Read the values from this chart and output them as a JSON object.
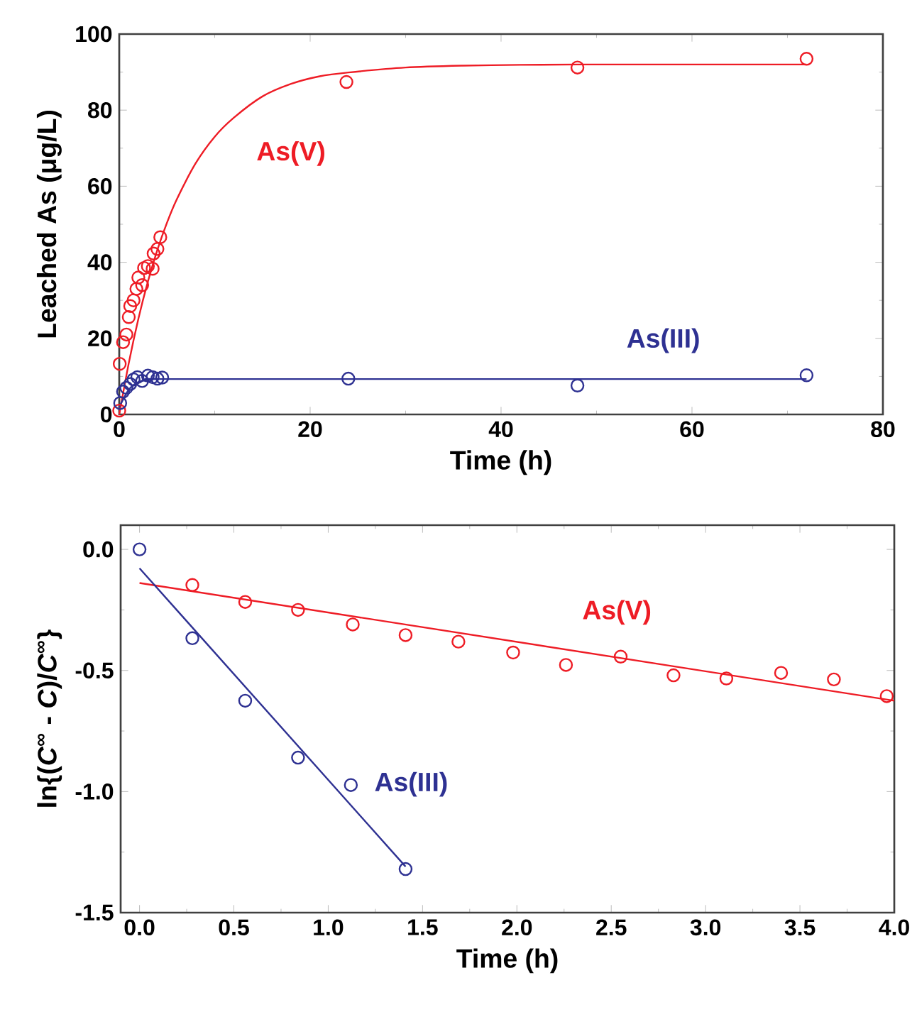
{
  "chart_data": [
    {
      "type": "scatter",
      "xlabel": "Time  (h)",
      "ylabel": "Leached As (μg/L)",
      "xlim": [
        0,
        80
      ],
      "ylim": [
        0,
        100
      ],
      "xticks": [
        0,
        20,
        40,
        60,
        80
      ],
      "yticks": [
        0,
        20,
        40,
        60,
        80,
        100
      ],
      "series": [
        {
          "name": "As(V)",
          "color": "#ee1c25",
          "marker": "circle",
          "x": [
            0,
            0.05,
            0.4,
            0.75,
            1,
            1.15,
            1.5,
            1.8,
            2,
            2.4,
            2.6,
            3,
            3.5,
            3.6,
            4,
            4.3,
            23.8,
            48,
            72
          ],
          "values": [
            1,
            13.3,
            19,
            21,
            25.6,
            28.5,
            30,
            33,
            36,
            34,
            38.5,
            39,
            38.3,
            42.3,
            43.5,
            46.6,
            87.4,
            91.2,
            93.5
          ]
        },
        {
          "name": "As(III)",
          "color": "#2e3192",
          "marker": "circle",
          "x": [
            0.1,
            0.4,
            0.75,
            1.15,
            1.5,
            1.9,
            2.4,
            3,
            3.5,
            4,
            4.5,
            24,
            48,
            72
          ],
          "values": [
            3,
            6,
            7,
            8,
            9.2,
            9.8,
            8.8,
            10.2,
            9.8,
            9.4,
            9.7,
            9.4,
            7.6,
            10.3
          ]
        },
        {
          "type": "line",
          "color": "#ee1c25",
          "marker": "none",
          "x": [
            0,
            1,
            2,
            3,
            4,
            5,
            6,
            8,
            10,
            12,
            15,
            18,
            21,
            24,
            30,
            36,
            42,
            48,
            60,
            72
          ],
          "values": [
            0,
            13.5,
            25.1,
            34.9,
            43.3,
            50.4,
            56.4,
            66,
            73,
            78,
            83.6,
            86.9,
            88.9,
            89.9,
            91.2,
            91.7,
            91.9,
            92,
            92,
            92
          ]
        },
        {
          "type": "line",
          "color": "#2e3192",
          "marker": "none",
          "x": [
            0,
            1,
            2,
            3,
            4,
            8,
            72
          ],
          "values": [
            2,
            6.5,
            8.5,
            9.1,
            9.3,
            9.3,
            9.3
          ]
        }
      ]
    },
    {
      "type": "scatter",
      "xlabel": "Time  (h)",
      "ylabel": "ln{(*C*$^{∞}$ - *C*)/*C*$^{∞}$}",
      "xlim": [
        -0.1,
        4.0
      ],
      "ylim": [
        -1.5,
        0.1
      ],
      "xticks": [
        {
          "value": 0,
          "label": "0.0"
        },
        {
          "value": 0.5,
          "label": "0.5"
        },
        {
          "value": 1,
          "label": "1.0"
        },
        {
          "value": 1.5,
          "label": "1.5"
        },
        {
          "value": 2,
          "label": "2.0"
        },
        {
          "value": 2.5,
          "label": "2.5"
        },
        {
          "value": 3,
          "label": "3.0"
        },
        {
          "value": 3.5,
          "label": "3.5"
        },
        {
          "value": 4,
          "label": "4.0"
        }
      ],
      "yticks": [
        {
          "value": -1.5,
          "label": "-1.5"
        },
        {
          "value": -1,
          "label": "-1.0"
        },
        {
          "value": -0.5,
          "label": "-0.5"
        },
        {
          "value": 0,
          "label": "0.0"
        }
      ],
      "series": [
        {
          "name": "As(V)",
          "color": "#ee1c25",
          "marker": "circle",
          "x": [
            0.28,
            0.56,
            0.84,
            1.13,
            1.41,
            1.69,
            1.98,
            2.26,
            2.55,
            2.83,
            3.11,
            3.4,
            3.68,
            3.96
          ],
          "values": [
            -0.147,
            -0.217,
            -0.25,
            -0.31,
            -0.354,
            -0.381,
            -0.426,
            -0.477,
            -0.443,
            -0.52,
            -0.533,
            -0.51,
            -0.537,
            -0.606
          ]
        },
        {
          "name": "As(III)",
          "color": "#2e3192",
          "marker": "circle",
          "x": [
            0,
            0.28,
            0.56,
            0.84,
            1.12,
            1.41
          ],
          "values": [
            0,
            -0.367,
            -0.625,
            -0.86,
            -0.973,
            -1.32
          ]
        },
        {
          "type": "line",
          "color": "#ee1c25",
          "marker": "none",
          "x": [
            0,
            4
          ],
          "values": [
            -0.139,
            -0.625
          ]
        },
        {
          "type": "line",
          "color": "#2e3192",
          "marker": "none",
          "x": [
            0,
            1.41
          ],
          "values": [
            -0.078,
            -1.31
          ]
        }
      ]
    }
  ]
}
